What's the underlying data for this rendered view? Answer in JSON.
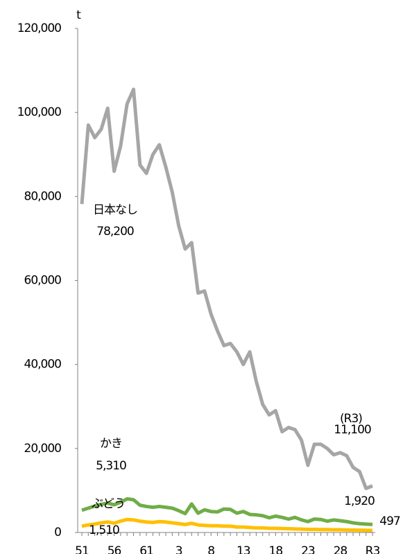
{
  "chart_data": {
    "type": "line",
    "y_unit": "t",
    "categories": [
      "51",
      null,
      null,
      null,
      null,
      "56",
      null,
      null,
      null,
      null,
      "61",
      null,
      null,
      null,
      null,
      "3",
      null,
      null,
      null,
      null,
      "8",
      null,
      null,
      null,
      null,
      "13",
      null,
      null,
      null,
      null,
      "18",
      null,
      null,
      null,
      null,
      "23",
      null,
      null,
      null,
      null,
      "28",
      null,
      null,
      null,
      null,
      "R3"
    ],
    "ylim": [
      0,
      120000
    ],
    "yticks": [
      0,
      {
        "value": 20000,
        "label": "20,000"
      },
      {
        "value": 40000,
        "label": "40,000"
      },
      {
        "value": 60000,
        "label": "60,000"
      },
      {
        "value": 80000,
        "label": "80,000"
      },
      {
        "value": 100000,
        "label": "100,000"
      },
      {
        "value": 120000,
        "label": "120,000"
      }
    ],
    "grid": false,
    "series": [
      {
        "name": "日本なし",
        "color": "#a6a6a6",
        "start_label": "78,200",
        "end_note": "(R3)",
        "end_label": "11,100",
        "values": [
          78200,
          97000,
          94000,
          96000,
          101000,
          86000,
          92000,
          102000,
          105500,
          87500,
          85500,
          90000,
          92300,
          87000,
          81000,
          73000,
          67500,
          69000,
          57000,
          57500,
          52000,
          48000,
          44500,
          45000,
          43000,
          40000,
          43000,
          36000,
          30500,
          28000,
          29000,
          24000,
          25000,
          24500,
          22000,
          16000,
          21000,
          21000,
          20000,
          18500,
          19000,
          18300,
          15500,
          14500,
          10500,
          11100
        ]
      },
      {
        "name": "かき",
        "color": "#70ad47",
        "start_label": "5,310",
        "end_label": "1,920",
        "values": [
          5310,
          5800,
          6300,
          6700,
          7000,
          6600,
          7200,
          8000,
          7800,
          6500,
          6200,
          6000,
          6200,
          6000,
          5800,
          5200,
          4500,
          6800,
          4600,
          5400,
          5000,
          4900,
          5600,
          5500,
          4600,
          5000,
          4300,
          4200,
          4000,
          3500,
          3900,
          3600,
          3200,
          3600,
          3000,
          2600,
          3200,
          3100,
          2700,
          3000,
          2800,
          2600,
          2300,
          2100,
          2000,
          1920
        ]
      },
      {
        "name": "ぶどう",
        "color": "#ffc000",
        "start_label": "1,510",
        "end_label": "497",
        "values": [
          1510,
          1800,
          2000,
          2300,
          2500,
          2200,
          2700,
          3100,
          3000,
          2700,
          2500,
          2400,
          2600,
          2500,
          2300,
          2100,
          1900,
          2200,
          1800,
          1700,
          1600,
          1600,
          1500,
          1500,
          1300,
          1300,
          1200,
          1100,
          1100,
          1000,
          1000,
          950,
          900,
          850,
          800,
          750,
          750,
          700,
          700,
          650,
          650,
          600,
          580,
          550,
          520,
          497
        ]
      }
    ]
  }
}
